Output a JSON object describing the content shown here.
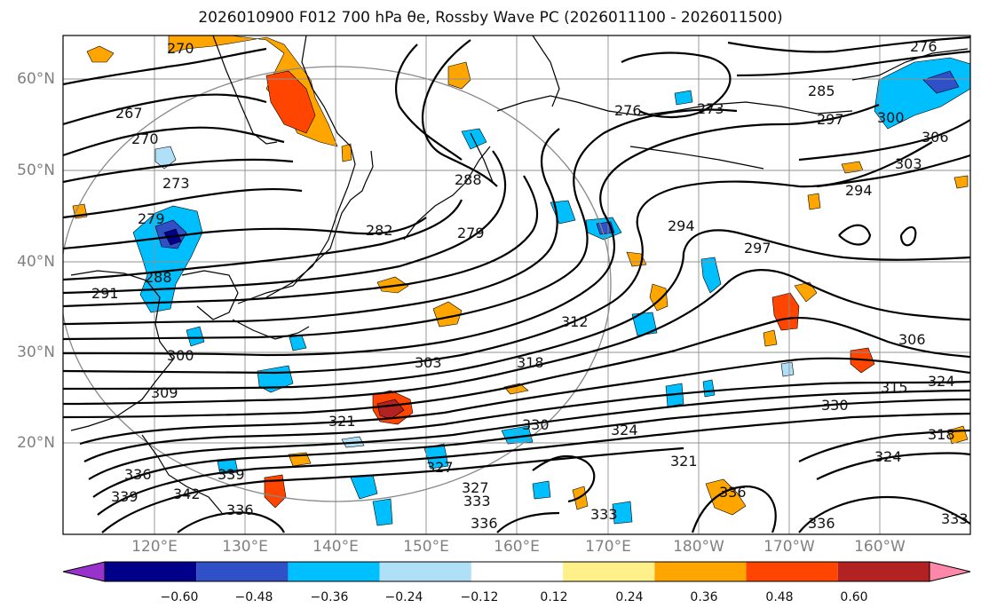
{
  "title": "2026010900 F012 700 hPa θe, Rossby Wave PC (2026011100 - 2026011500)",
  "latitude_labels": [
    "60°N",
    "50°N",
    "40°N",
    "30°N",
    "20°N"
  ],
  "longitude_labels": [
    "120°E",
    "130°E",
    "140°E",
    "150°E",
    "160°E",
    "170°E",
    "180°W",
    "170°W",
    "160°W"
  ],
  "colorbar": {
    "ticks": [
      "−0.60",
      "−0.48",
      "−0.36",
      "−0.24",
      "−0.12",
      "0.12",
      "0.24",
      "0.36",
      "0.48",
      "0.60"
    ],
    "colors": [
      "#9932cc",
      "#00008b",
      "#3050c8",
      "#00bfff",
      "#b0e0f8",
      "#ffffff",
      "#fff08a",
      "#ffa500",
      "#ff4500",
      "#b22222",
      "#ff88aa"
    ]
  },
  "contour_labels": [
    {
      "text": "270"
    },
    {
      "text": "267"
    },
    {
      "text": "270"
    },
    {
      "text": "273"
    },
    {
      "text": "279"
    },
    {
      "text": "291"
    },
    {
      "text": "288"
    },
    {
      "text": "300"
    },
    {
      "text": "309"
    },
    {
      "text": "282"
    },
    {
      "text": "288"
    },
    {
      "text": "279"
    },
    {
      "text": "276"
    },
    {
      "text": "273"
    },
    {
      "text": "276"
    },
    {
      "text": "285"
    },
    {
      "text": "297"
    },
    {
      "text": "300"
    },
    {
      "text": "306"
    },
    {
      "text": "303"
    },
    {
      "text": "294"
    },
    {
      "text": "294"
    },
    {
      "text": "297"
    },
    {
      "text": "312"
    },
    {
      "text": "318"
    },
    {
      "text": "303"
    },
    {
      "text": "321"
    },
    {
      "text": "330"
    },
    {
      "text": "324"
    },
    {
      "text": "321"
    },
    {
      "text": "327"
    },
    {
      "text": "333"
    },
    {
      "text": "327"
    },
    {
      "text": "336"
    },
    {
      "text": "333"
    },
    {
      "text": "336"
    },
    {
      "text": "336"
    },
    {
      "text": "306"
    },
    {
      "text": "315"
    },
    {
      "text": "324"
    },
    {
      "text": "330"
    },
    {
      "text": "318"
    },
    {
      "text": "324"
    },
    {
      "text": "336"
    },
    {
      "text": "333"
    },
    {
      "text": "339"
    },
    {
      "text": "339"
    },
    {
      "text": "342"
    },
    {
      "text": "336"
    }
  ]
}
